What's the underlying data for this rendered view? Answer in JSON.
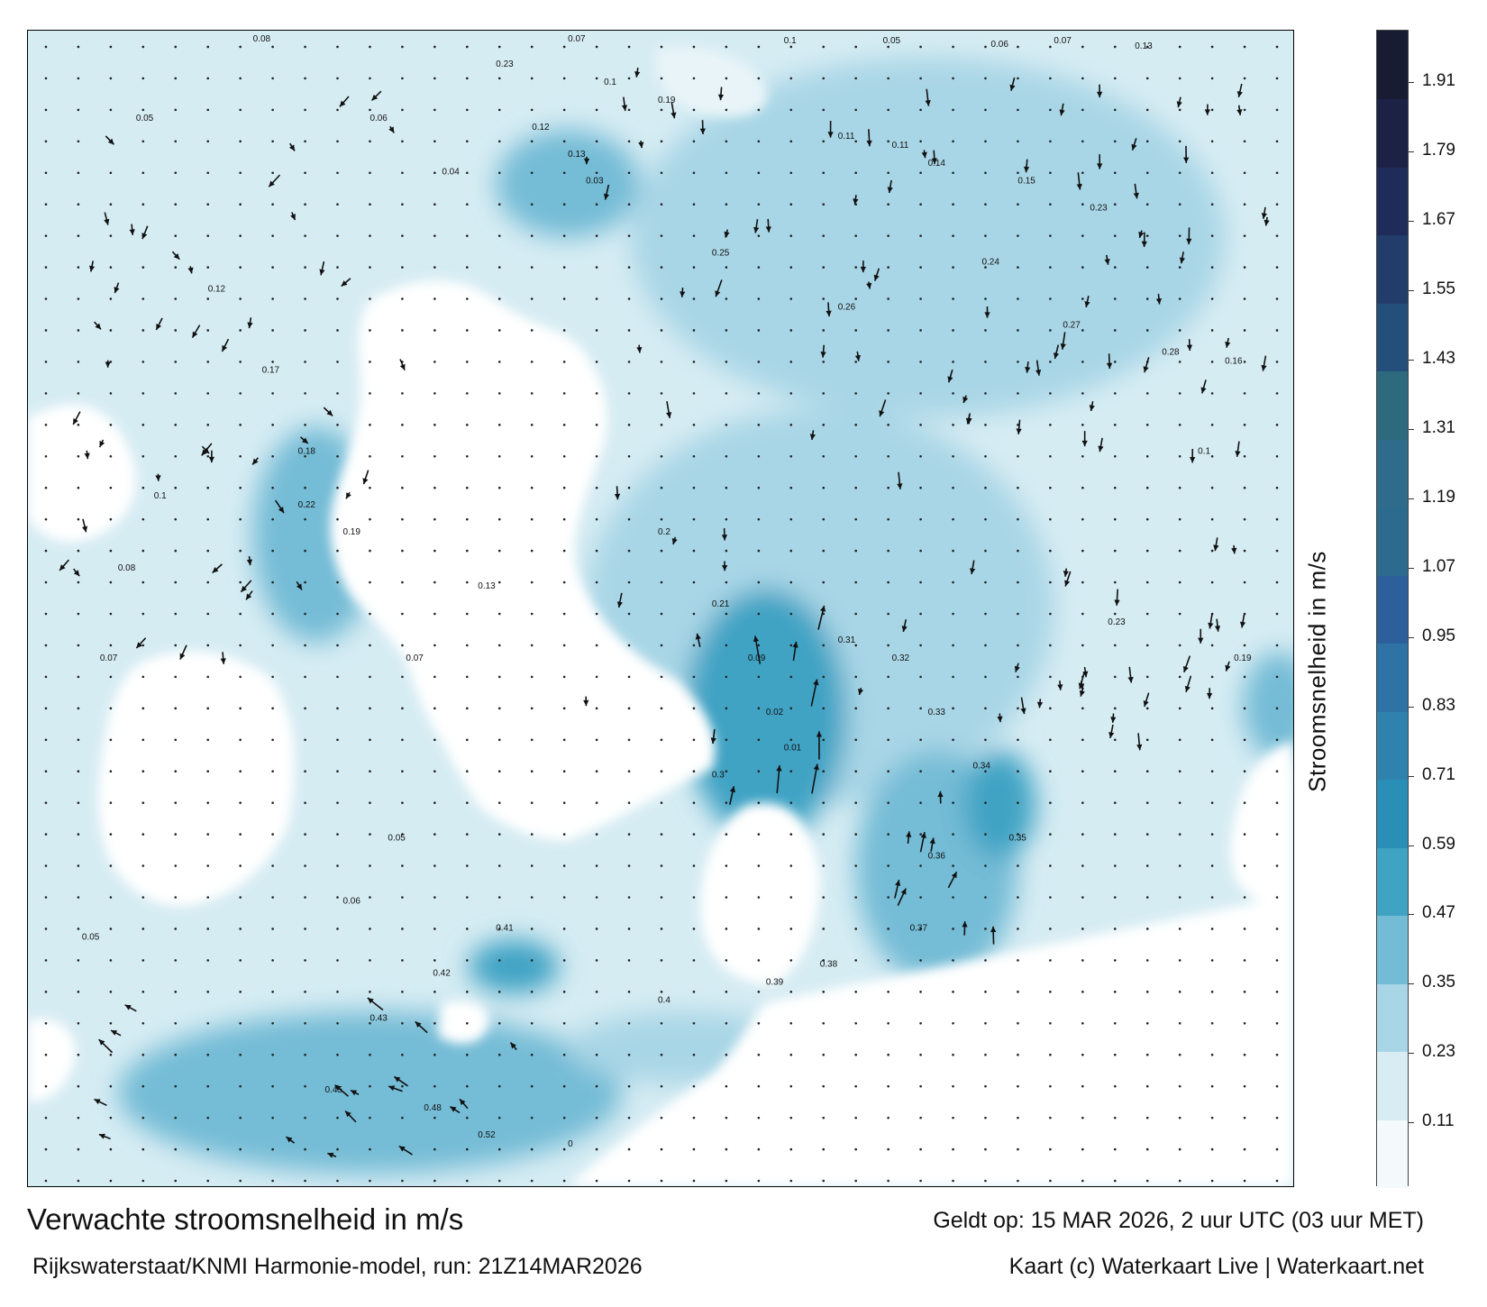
{
  "title": "Verwachte stroomsnelheid in m/s",
  "subtitle": "Rijkswaterstaat/KNMI Harmonie-model, run: 21Z14MAR2026",
  "valid_time": "Geldt op: 15 MAR 2026, 2 uur UTC (03 uur MET)",
  "credit": "Kaart (c) Waterkaart Live | Waterkaart.net",
  "colorbar": {
    "label": "Stroomsnelheid in m/s",
    "ticks": [
      "0.11",
      "0.23",
      "0.35",
      "0.47",
      "0.59",
      "0.71",
      "0.83",
      "0.95",
      "1.07",
      "1.19",
      "1.31",
      "1.43",
      "1.55",
      "1.67",
      "1.79",
      "1.91"
    ],
    "tick_values": [
      0.11,
      0.23,
      0.35,
      0.47,
      0.59,
      0.71,
      0.83,
      0.95,
      1.07,
      1.19,
      1.31,
      1.43,
      1.55,
      1.67,
      1.79,
      1.91
    ],
    "range": [
      0.0,
      2.0
    ],
    "colors": [
      "#f4f9fb",
      "#d7ecf3",
      "#a9d6e6",
      "#74bcd6",
      "#3fa3c4",
      "#2a8fb6",
      "#2f82ad",
      "#2e72a6",
      "#2d609b",
      "#2c6a8e",
      "#2f6b8a",
      "#2d6a7e",
      "#244f7b",
      "#223d6a",
      "#1f2c5a",
      "#1c2245",
      "#171c33"
    ]
  },
  "map": {
    "icons": [
      "current-arrow-icon",
      "grid-dot-icon"
    ],
    "sea_color": "#cfe8f1",
    "strong_current_color": "#2a90b8",
    "land_color": "#ffffff",
    "labels": [
      "0.08",
      "0.07",
      "0.1",
      "0.05",
      "0.06",
      "0.07",
      "0.13",
      "0.23",
      "0.1",
      "0.19",
      "0.05",
      "0.06",
      "0.12",
      "0.13",
      "0.03",
      "0.04",
      "0.11",
      "0.11",
      "0.14",
      "0.15",
      "0.23",
      "0.24",
      "0.25",
      "0.26",
      "0.27",
      "0.28",
      "0.16",
      "0.12",
      "0.17",
      "0.18",
      "0.22",
      "0.19",
      "0.2",
      "0.21",
      "0.09",
      "0.02",
      "0.01",
      "0.3",
      "0.31",
      "0.32",
      "0.33",
      "0.34",
      "0.35",
      "0.36",
      "0.37",
      "0.38",
      "0.39",
      "0.4",
      "0.41",
      "0.42",
      "0.43",
      "0.45",
      "0.48",
      "0.52",
      "0"
    ]
  }
}
